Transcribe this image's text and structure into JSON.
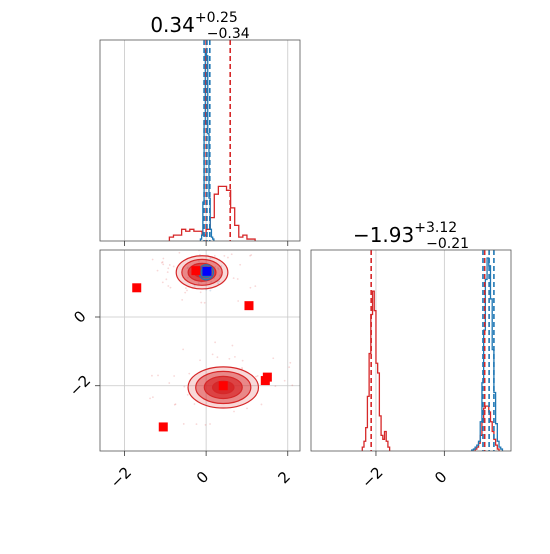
{
  "colors": {
    "series_a": "#d62728",
    "series_b": "#1f77b4",
    "marker_a": "#ff0000",
    "marker_b": "#0000ff"
  },
  "chart_data": {
    "type": "corner",
    "panels": [
      {
        "id": "hist-param1",
        "type": "histogram",
        "title": {
          "value": "0.34",
          "plus": "+0.25",
          "minus": "−0.34"
        },
        "xlim": [
          -2.6,
          2.3
        ],
        "x_ticks": [
          -2,
          0,
          2
        ],
        "x_tick_labels_shown": false,
        "y_ticks_shown": false,
        "grid": true,
        "quantile_lines": {
          "series_a": [
            0.0,
            0.59
          ],
          "series_b": [
            -0.05,
            0.02,
            0.09
          ]
        },
        "series": [
          {
            "color_key": "series_a",
            "bins": [
              -0.9,
              -0.8,
              -0.7,
              -0.6,
              -0.5,
              -0.4,
              -0.3,
              -0.2,
              -0.1,
              0.0,
              0.1,
              0.2,
              0.3,
              0.4,
              0.5,
              0.6,
              0.7,
              0.8,
              0.9,
              1.0,
              1.1,
              1.2
            ],
            "counts": [
              0.02,
              0.03,
              0.03,
              0.06,
              0.05,
              0.06,
              0.05,
              0.05,
              0.03,
              0.06,
              0.12,
              0.24,
              0.28,
              0.28,
              0.26,
              0.17,
              0.08,
              0.02,
              0.03,
              0.01,
              0.01,
              0
            ]
          },
          {
            "color_key": "series_b",
            "bins": [
              -0.14,
              -0.11,
              -0.08,
              -0.05,
              -0.02,
              0.01,
              0.04,
              0.07,
              0.1,
              0.13,
              0.16,
              0.19
            ],
            "counts": [
              0.01,
              0.03,
              0.2,
              0.6,
              0.98,
              0.95,
              0.55,
              0.22,
              0.06,
              0.02,
              0.01,
              0
            ]
          }
        ]
      },
      {
        "id": "scatter-2d",
        "type": "contour",
        "xlim": [
          -2.6,
          2.3
        ],
        "ylim": [
          -3.9,
          1.95
        ],
        "x_ticks": [
          -2,
          0,
          2
        ],
        "y_ticks": [
          -2,
          0
        ],
        "grid": true,
        "density_blobs": [
          {
            "color_key": "series_a",
            "cx": -0.1,
            "cy": 1.3,
            "sx": 0.55,
            "sy": 0.42
          },
          {
            "color_key": "series_a",
            "cx": 0.42,
            "cy": -2.05,
            "sx": 0.75,
            "sy": 0.52
          },
          {
            "color_key": "series_b",
            "cx": 0.0,
            "cy": 1.3,
            "sx": 0.18,
            "sy": 0.22
          }
        ],
        "markers_a": [
          [
            -1.7,
            0.85
          ],
          [
            -0.25,
            1.35
          ],
          [
            1.05,
            0.33
          ],
          [
            1.5,
            -1.75
          ],
          [
            1.45,
            -1.85
          ],
          [
            -1.05,
            -3.2
          ],
          [
            0.42,
            -2.0
          ]
        ],
        "markers_b": [
          [
            0.02,
            1.33
          ]
        ]
      },
      {
        "id": "hist-param2",
        "type": "histogram",
        "title": {
          "value": "−1.93",
          "plus": "+3.12",
          "minus": "−0.21"
        },
        "xlim": [
          -3.9,
          1.95
        ],
        "x_ticks": [
          -2,
          0
        ],
        "y_ticks_shown": false,
        "grid": true,
        "quantile_lines": {
          "series_a": [
            -2.14,
            1.18
          ],
          "series_b": [
            1.13,
            1.31,
            1.45
          ]
        },
        "series": [
          {
            "color_key": "series_a",
            "bins": [
              -2.4,
              -2.35,
              -2.3,
              -2.25,
              -2.2,
              -2.15,
              -2.1,
              -2.05,
              -2.0,
              -1.95,
              -1.9,
              -1.85,
              -1.8,
              -1.75,
              -1.7,
              -1.65,
              -1.6
            ],
            "counts": [
              0.02,
              0.05,
              0.12,
              0.28,
              0.5,
              0.7,
              0.82,
              0.72,
              0.45,
              0.4,
              0.18,
              0.08,
              0.06,
              0.1,
              0.05,
              0.02,
              0
            ]
          },
          {
            "color_key": "series_a",
            "bins": [
              0.9,
              0.95,
              1.0,
              1.05,
              1.1,
              1.15,
              1.2,
              1.25,
              1.3,
              1.35,
              1.4,
              1.45,
              1.5,
              1.55,
              1.6
            ],
            "counts": [
              0.01,
              0.02,
              0.04,
              0.08,
              0.15,
              0.22,
              0.23,
              0.23,
              0.2,
              0.15,
              0.1,
              0.06,
              0.03,
              0.01,
              0
            ]
          },
          {
            "color_key": "series_b",
            "bins": [
              0.8,
              0.85,
              0.9,
              0.95,
              1.0,
              1.05,
              1.1,
              1.15,
              1.2,
              1.25,
              1.3,
              1.35,
              1.4,
              1.45,
              1.5,
              1.55,
              1.6,
              1.65,
              1.7
            ],
            "counts": [
              0.005,
              0.01,
              0.02,
              0.03,
              0.05,
              0.15,
              0.35,
              0.62,
              0.88,
              0.99,
              0.95,
              0.78,
              0.52,
              0.3,
              0.14,
              0.05,
              0.02,
              0.01,
              0
            ]
          }
        ]
      }
    ]
  }
}
